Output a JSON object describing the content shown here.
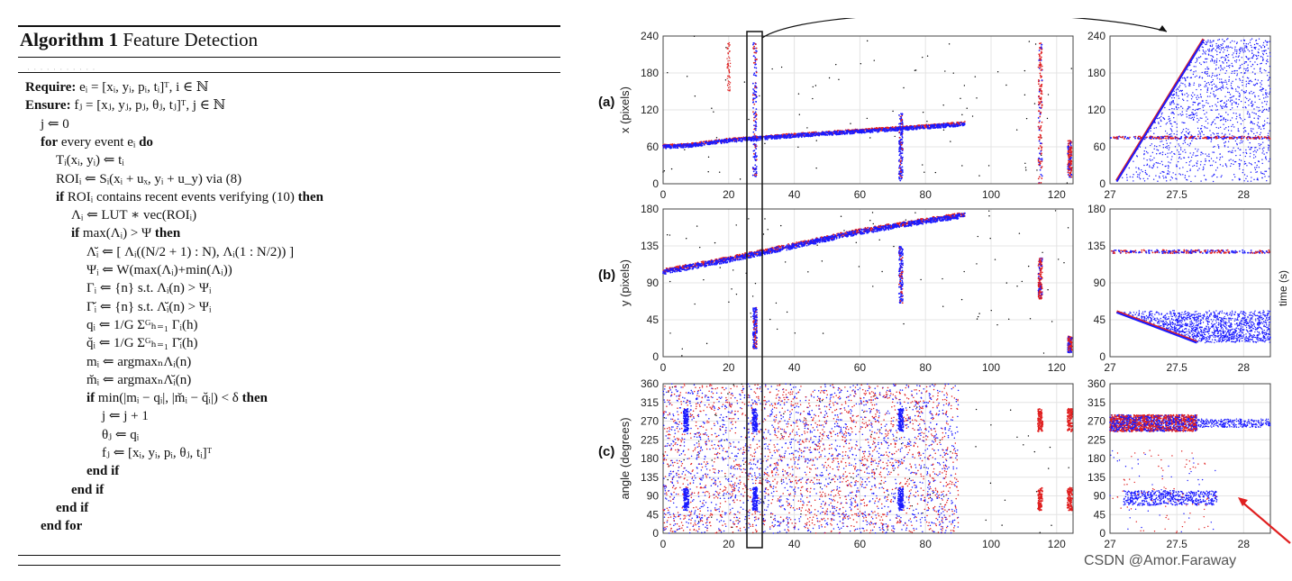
{
  "algorithm": {
    "number_label": "Algorithm 1",
    "name": "Feature Detection",
    "faint_text": "· · · · ·  ·  · · · · ·",
    "lines": [
      {
        "indent": 0,
        "kw": "Require:",
        "text": " eᵢ = [xᵢ, yᵢ, pᵢ, tᵢ]ᵀ, i ∈ ℕ",
        "tail": ""
      },
      {
        "indent": 0,
        "kw": "Ensure:",
        "text": " fⱼ = [xⱼ, yⱼ, pⱼ, θⱼ, tⱼ]ᵀ, j ∈ ℕ",
        "tail": ""
      },
      {
        "indent": 1,
        "kw": "",
        "text": "j ⇐ 0",
        "tail": ""
      },
      {
        "indent": 1,
        "kw": "for",
        "text": " every event eᵢ ",
        "tail": "do"
      },
      {
        "indent": 2,
        "kw": "",
        "text": "Tᵢ(xᵢ, yᵢ) ⇐ tᵢ",
        "tail": ""
      },
      {
        "indent": 2,
        "kw": "",
        "text": "ROIᵢ ⇐ Sᵢ(xᵢ + uₓ, yᵢ + u_y) via (8)",
        "tail": ""
      },
      {
        "indent": 2,
        "kw": "if",
        "text": " ROIᵢ contains recent events verifying (10) ",
        "tail": "then"
      },
      {
        "indent": 3,
        "kw": "",
        "text": "Λᵢ ⇐ LUT ∗ vec(ROIᵢ)",
        "tail": ""
      },
      {
        "indent": 3,
        "kw": "if",
        "text": " max(Λᵢ) > Ψ ",
        "tail": "then"
      },
      {
        "indent": 4,
        "kw": "",
        "text": "Λ̆ᵢ ⇐ [ Λᵢ((N/2 + 1) : N), Λᵢ(1 : N/2)) ]",
        "tail": ""
      },
      {
        "indent": 4,
        "kw": "",
        "text": "Ψᵢ ⇐ W(max(Λᵢ)+min(Λᵢ))",
        "tail": ""
      },
      {
        "indent": 4,
        "kw": "",
        "text": "Γᵢ ⇐ {n} s.t.  Λᵢ(n) > Ψᵢ",
        "tail": ""
      },
      {
        "indent": 4,
        "kw": "",
        "text": "Γ̆ᵢ ⇐ {n} s.t.  Λ̆ᵢ(n) > Ψᵢ",
        "tail": ""
      },
      {
        "indent": 4,
        "kw": "",
        "text": "qᵢ ⇐ 1/G Σᴳₕ₌₁ Γᵢ(h)",
        "tail": ""
      },
      {
        "indent": 4,
        "kw": "",
        "text": "q̆ᵢ ⇐ 1/G Σᴳₕ₌₁ Γ̆ᵢ(h)",
        "tail": ""
      },
      {
        "indent": 4,
        "kw": "",
        "text": "mᵢ ⇐ argmaxₙΛᵢ(n)",
        "tail": ""
      },
      {
        "indent": 4,
        "kw": "",
        "text": "m̆ᵢ ⇐ argmaxₙΛ̆ᵢ(n)",
        "tail": ""
      },
      {
        "indent": 4,
        "kw": "if",
        "text": " min(|mᵢ − qᵢ|, |m̆ᵢ − q̆ᵢ|) < δ ",
        "tail": "then"
      },
      {
        "indent": 5,
        "kw": "",
        "text": "j ⇐ j + 1",
        "tail": ""
      },
      {
        "indent": 5,
        "kw": "",
        "text": "θⱼ ⇐ qᵢ",
        "tail": ""
      },
      {
        "indent": 5,
        "kw": "",
        "text": "fⱼ ⇐ [xᵢ, yᵢ, pᵢ, θⱼ, tᵢ]ᵀ",
        "tail": ""
      },
      {
        "indent": 4,
        "kw": "end if",
        "text": "",
        "tail": ""
      },
      {
        "indent": 3,
        "kw": "end if",
        "text": "",
        "tail": ""
      },
      {
        "indent": 2,
        "kw": "end if",
        "text": "",
        "tail": ""
      },
      {
        "indent": 1,
        "kw": "end for",
        "text": "",
        "tail": ""
      }
    ]
  },
  "chart_data": [
    {
      "type": "scatter",
      "panel": "(a)",
      "ylabel": "x (pixels)",
      "xlabel": "",
      "xlim": [
        0,
        125
      ],
      "ylim": [
        0,
        240
      ],
      "xticks": [
        "0",
        "20",
        "40",
        "60",
        "80",
        "100",
        "120"
      ],
      "yticks": [
        "0",
        "60",
        "120",
        "180",
        "240"
      ],
      "trend": {
        "x": [
          0,
          8,
          20,
          40,
          60,
          80,
          92
        ],
        "y": [
          60,
          62,
          70,
          78,
          85,
          92,
          97
        ]
      }
    },
    {
      "type": "scatter",
      "panel": "(a) zoom",
      "ylabel": "",
      "xlabel": "",
      "xlim": [
        27,
        28.2
      ],
      "ylim": [
        0,
        240
      ],
      "xticks": [
        "27",
        "27.5",
        "28"
      ],
      "yticks": [
        "0",
        "60",
        "120",
        "180",
        "240"
      ],
      "lines": [
        {
          "x": [
            27.05,
            27.7
          ],
          "y": [
            5,
            235
          ]
        },
        {
          "x": [
            27,
            28.2
          ],
          "y": [
            75,
            75
          ]
        }
      ]
    },
    {
      "type": "scatter",
      "panel": "(b)",
      "ylabel": "y (pixels)",
      "xlabel": "",
      "xlim": [
        0,
        125
      ],
      "ylim": [
        0,
        180
      ],
      "xticks": [
        "0",
        "20",
        "40",
        "60",
        "80",
        "100",
        "120"
      ],
      "yticks": [
        "0",
        "45",
        "90",
        "135",
        "180"
      ],
      "trend": {
        "x": [
          0,
          20,
          40,
          60,
          80,
          92
        ],
        "y": [
          103,
          118,
          135,
          152,
          165,
          172
        ]
      }
    },
    {
      "type": "scatter",
      "panel": "(b) zoom",
      "ylabel": "",
      "xlabel": "",
      "xlim": [
        27,
        28.2
      ],
      "ylim": [
        0,
        180
      ],
      "xticks": [
        "27",
        "27.5",
        "28"
      ],
      "yticks": [
        "0",
        "45",
        "90",
        "135",
        "180"
      ],
      "lines": [
        {
          "x": [
            27.05,
            27.65
          ],
          "y": [
            55,
            18
          ]
        },
        {
          "x": [
            27,
            28.2
          ],
          "y": [
            128,
            128
          ]
        }
      ]
    },
    {
      "type": "scatter",
      "panel": "(c)",
      "ylabel": "angle (degrees)",
      "xlabel": "time (s)",
      "xlim": [
        0,
        125
      ],
      "ylim": [
        0,
        360
      ],
      "xticks": [
        "0",
        "20",
        "40",
        "60",
        "80",
        "100",
        "120"
      ],
      "yticks": [
        "0",
        "45",
        "90",
        "135",
        "180",
        "225",
        "270",
        "315",
        "360"
      ]
    },
    {
      "type": "scatter",
      "panel": "(c) zoom",
      "ylabel": "",
      "xlabel": "time (s)",
      "xlim": [
        27,
        28.2
      ],
      "ylim": [
        0,
        360
      ],
      "xticks": [
        "27",
        "27.5",
        "28"
      ],
      "yticks": [
        "0",
        "45",
        "90",
        "135",
        "180",
        "225",
        "270",
        "315",
        "360"
      ],
      "bands": [
        {
          "y": 265,
          "x": [
            27,
            27.65
          ]
        },
        {
          "y": 85,
          "x": [
            27.1,
            27.8
          ]
        }
      ]
    }
  ],
  "figure": {
    "panel_labels": [
      "(a)",
      "(b)",
      "(c)"
    ],
    "right_axis_label": "time (s)",
    "colors": {
      "event_blue": "#1a1aff",
      "event_red": "#e02020",
      "dot_black": "#000000",
      "arrow_red": "#e02020"
    }
  },
  "credit": "CSDN @Amor.Faraway"
}
